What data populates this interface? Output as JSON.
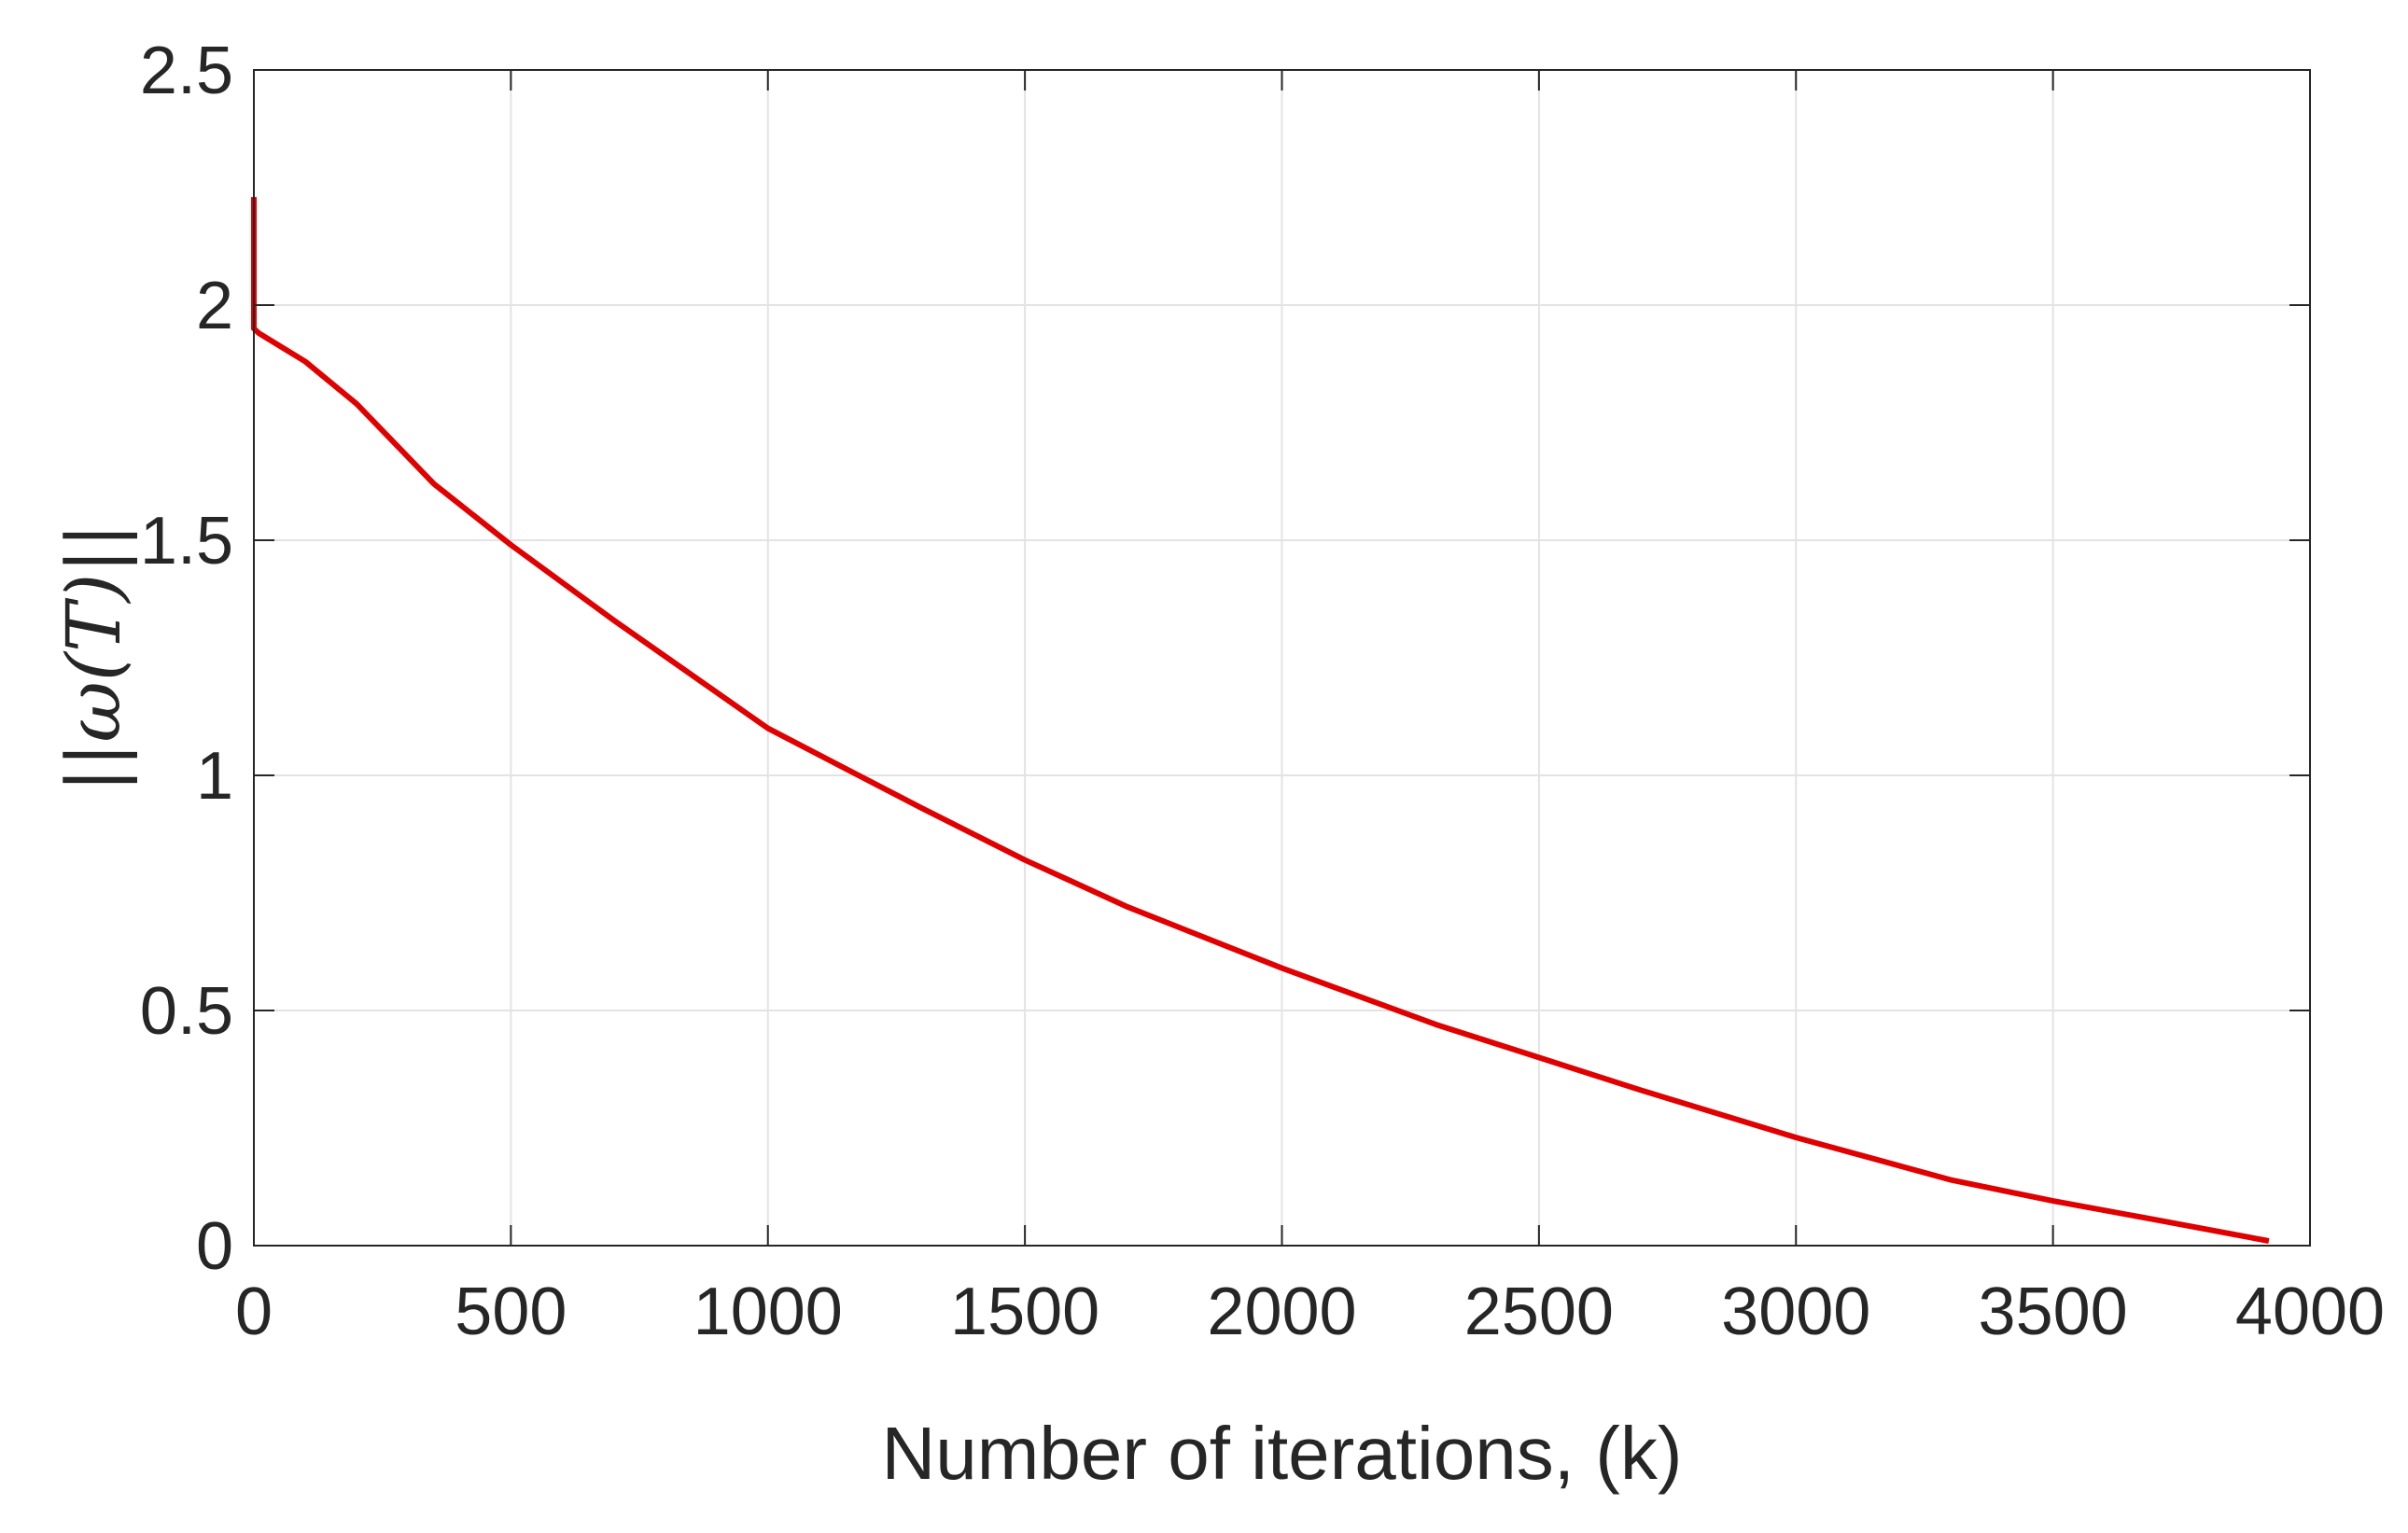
{
  "chart_data": {
    "type": "line",
    "title": "",
    "xlabel": "Number of iterations, (k)",
    "ylabel": "||ω(T)||",
    "xlim": [
      0,
      4000
    ],
    "ylim": [
      0,
      2.5
    ],
    "xticks": [
      0,
      500,
      1000,
      1500,
      2000,
      2500,
      3000,
      3500,
      4000
    ],
    "xtick_labels": [
      "0",
      "500",
      "1000",
      "1500",
      "2000",
      "2500",
      "3000",
      "3500",
      "4000"
    ],
    "yticks": [
      0,
      0.5,
      1,
      1.5,
      2,
      2.5
    ],
    "ytick_labels": [
      "0",
      "0.5",
      "1",
      "1.5",
      "2",
      "2.5"
    ],
    "grid": true,
    "legend": "none",
    "series": [
      {
        "color": "#e00000",
        "x": [
          0,
          0,
          10,
          100,
          200,
          350,
          500,
          700,
          1000,
          1300,
          1500,
          1700,
          2000,
          2300,
          2500,
          2700,
          3000,
          3300,
          3500,
          3700,
          3920
        ],
        "y": [
          2.23,
          1.95,
          1.94,
          1.88,
          1.79,
          1.62,
          1.49,
          1.33,
          1.1,
          0.93,
          0.82,
          0.72,
          0.59,
          0.47,
          0.4,
          0.33,
          0.23,
          0.14,
          0.095,
          0.055,
          0.01
        ]
      }
    ]
  }
}
